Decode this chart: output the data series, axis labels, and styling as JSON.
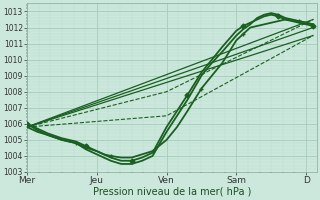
{
  "background_color": "#cce8dc",
  "grid_color_major": "#aacfbf",
  "grid_color_minor": "#bbddd0",
  "line_color": "#1a6020",
  "title": "Pression niveau de la mer( hPa )",
  "x_labels": [
    "Mer",
    "Jeu",
    "Ven",
    "Sam",
    "D"
  ],
  "x_positions": [
    0,
    1,
    2,
    3,
    4
  ],
  "xlim": [
    0,
    4.15
  ],
  "ylim": [
    1003,
    1013.5
  ],
  "yticks": [
    1003,
    1004,
    1005,
    1006,
    1007,
    1008,
    1009,
    1010,
    1011,
    1012,
    1013
  ],
  "lines": [
    {
      "x": [
        0.0,
        4.1
      ],
      "y": [
        1005.8,
        1012.5
      ],
      "lw": 0.9,
      "marker": null,
      "dashed": false
    },
    {
      "x": [
        0.0,
        4.1
      ],
      "y": [
        1005.8,
        1012.0
      ],
      "lw": 0.9,
      "marker": null,
      "dashed": false
    },
    {
      "x": [
        0.0,
        4.1
      ],
      "y": [
        1005.8,
        1011.5
      ],
      "lw": 0.9,
      "marker": null,
      "dashed": false
    },
    {
      "x": [
        0.0,
        2.0,
        4.1
      ],
      "y": [
        1005.8,
        1008.0,
        1012.5
      ],
      "lw": 0.8,
      "marker": null,
      "dashed": true
    },
    {
      "x": [
        0.0,
        2.0,
        4.1
      ],
      "y": [
        1005.8,
        1006.5,
        1011.5
      ],
      "lw": 0.8,
      "marker": null,
      "dashed": true
    },
    {
      "x": [
        0.0,
        0.15,
        0.3,
        0.5,
        0.7,
        0.85,
        1.0,
        1.1,
        1.2,
        1.35,
        1.5,
        1.65,
        1.8,
        2.0,
        2.15,
        2.3,
        2.5,
        2.65,
        2.8,
        3.0,
        3.1,
        3.2,
        3.3,
        3.4,
        3.5,
        3.6,
        3.7,
        3.8,
        3.9,
        4.0,
        4.1
      ],
      "y": [
        1005.8,
        1005.5,
        1005.3,
        1005.0,
        1004.8,
        1004.4,
        1004.1,
        1003.9,
        1003.7,
        1003.5,
        1003.5,
        1003.7,
        1004.0,
        1005.5,
        1006.5,
        1007.5,
        1009.0,
        1009.8,
        1010.5,
        1011.5,
        1011.9,
        1012.2,
        1012.6,
        1012.8,
        1012.9,
        1012.8,
        1012.6,
        1012.5,
        1012.4,
        1012.3,
        1012.2
      ],
      "lw": 1.3,
      "marker": null,
      "dashed": false
    },
    {
      "x": [
        0.0,
        0.15,
        0.3,
        0.5,
        0.7,
        0.85,
        1.0,
        1.1,
        1.2,
        1.35,
        1.5,
        1.65,
        1.8,
        2.0,
        2.15,
        2.3,
        2.5,
        2.65,
        2.8,
        3.0,
        3.1,
        3.2,
        3.3,
        3.4,
        3.5,
        3.6,
        3.7,
        3.8,
        3.9,
        4.0,
        4.1
      ],
      "y": [
        1006.0,
        1005.7,
        1005.4,
        1005.1,
        1004.9,
        1004.6,
        1004.3,
        1004.1,
        1003.9,
        1003.7,
        1003.7,
        1003.9,
        1004.2,
        1005.8,
        1006.8,
        1007.8,
        1009.2,
        1010.0,
        1010.8,
        1011.8,
        1012.1,
        1012.3,
        1012.5,
        1012.7,
        1012.8,
        1012.7,
        1012.5,
        1012.4,
        1012.3,
        1012.2,
        1012.1
      ],
      "lw": 1.3,
      "marker": "D",
      "markevery": 5,
      "markersize": 2.5,
      "dashed": false
    },
    {
      "x": [
        0.0,
        0.15,
        0.3,
        0.5,
        0.7,
        0.85,
        1.0,
        1.1,
        1.2,
        1.35,
        1.5,
        1.65,
        1.8,
        2.0,
        2.15,
        2.3,
        2.5,
        2.65,
        2.8,
        3.0,
        3.1,
        3.2,
        3.5,
        3.7,
        3.9,
        4.0,
        4.1
      ],
      "y": [
        1006.0,
        1005.6,
        1005.3,
        1005.0,
        1004.8,
        1004.5,
        1004.3,
        1004.1,
        1004.0,
        1003.9,
        1003.9,
        1004.1,
        1004.3,
        1005.0,
        1005.8,
        1006.8,
        1008.2,
        1009.0,
        1009.8,
        1011.2,
        1011.6,
        1012.0,
        1012.3,
        1012.5,
        1012.4,
        1012.3,
        1012.2
      ],
      "lw": 1.3,
      "marker": "+",
      "markevery": 4,
      "markersize": 3.0,
      "dashed": false
    }
  ]
}
